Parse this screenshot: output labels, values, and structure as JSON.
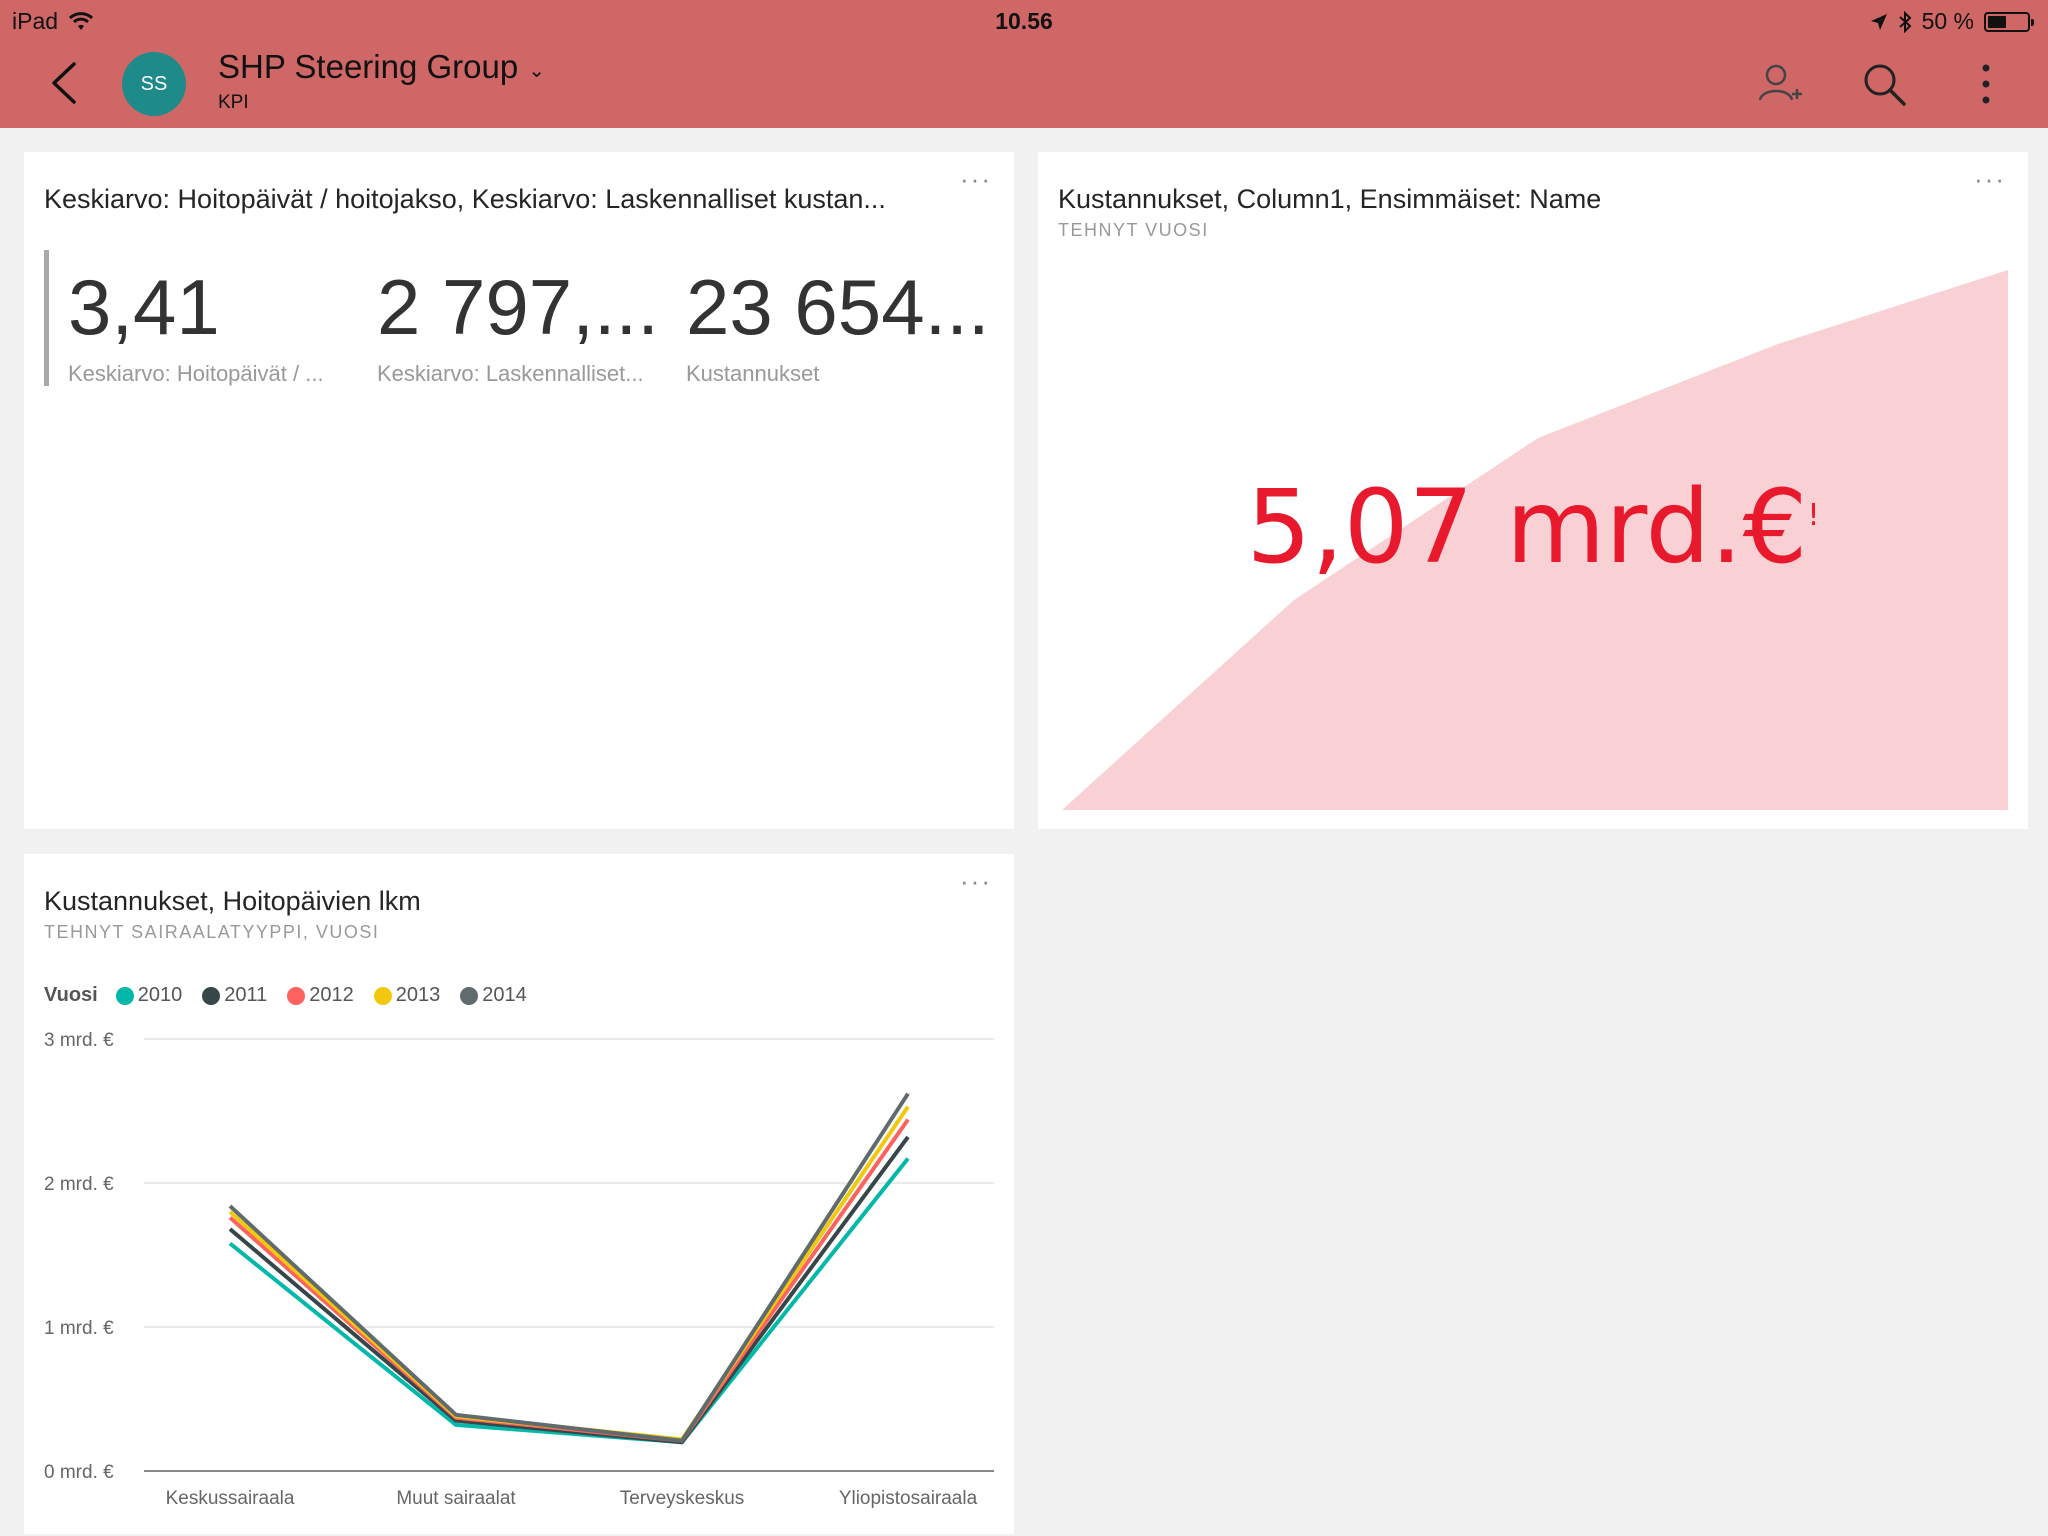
{
  "status": {
    "device": "iPad",
    "time": "10.56",
    "battery": "50 %"
  },
  "header": {
    "avatar_initials": "SS",
    "title": "SHP Steering Group",
    "subtitle": "KPI",
    "chevron": "⌄"
  },
  "tiles": {
    "kpi": {
      "menu": "···",
      "title": "Keskiarvo: Hoitopäivät / hoitojakso, Keskiarvo: Laskennalliset kustan...",
      "cards": [
        {
          "value": "3,41",
          "label": "Keskiarvo: Hoitopäivät / ..."
        },
        {
          "value": "2 797,...",
          "label": "Keskiarvo: Laskennalliset..."
        },
        {
          "value": "23 654...",
          "label": "Kustannukset"
        }
      ]
    },
    "area": {
      "menu": "···",
      "title": "Kustannukset, Column1, Ensimmäiset: Name",
      "subtitle": "TEHNYT VUOSI",
      "value": "5,07 mrd.€",
      "value_suffix": "!",
      "fill_color": "#f9d0d3"
    },
    "line": {
      "menu": "···",
      "title": "Kustannukset, Hoitopäivien lkm",
      "subtitle": "TEHNYT SAIRAALATYYPPI, VUOSI",
      "legend_title": "Vuosi"
    }
  },
  "chart_data": {
    "type": "line",
    "categories": [
      "Keskussairaala",
      "Muut sairaalat",
      "Terveyskeskus",
      "Yliopistosairaala"
    ],
    "yticks": [
      "0 mrd. €",
      "1 mrd. €",
      "2 mrd. €",
      "3 mrd. €"
    ],
    "ylim": [
      0,
      3
    ],
    "series": [
      {
        "name": "2010",
        "color": "#01b8aa",
        "values": [
          1.58,
          0.32,
          0.2,
          2.17
        ]
      },
      {
        "name": "2011",
        "color": "#374649",
        "values": [
          1.68,
          0.35,
          0.2,
          2.32
        ]
      },
      {
        "name": "2012",
        "color": "#fd625e",
        "values": [
          1.76,
          0.37,
          0.21,
          2.44
        ]
      },
      {
        "name": "2013",
        "color": "#f2c80f",
        "values": [
          1.8,
          0.38,
          0.22,
          2.53
        ]
      },
      {
        "name": "2014",
        "color": "#5f6b6d",
        "values": [
          1.84,
          0.39,
          0.21,
          2.62
        ]
      }
    ]
  }
}
